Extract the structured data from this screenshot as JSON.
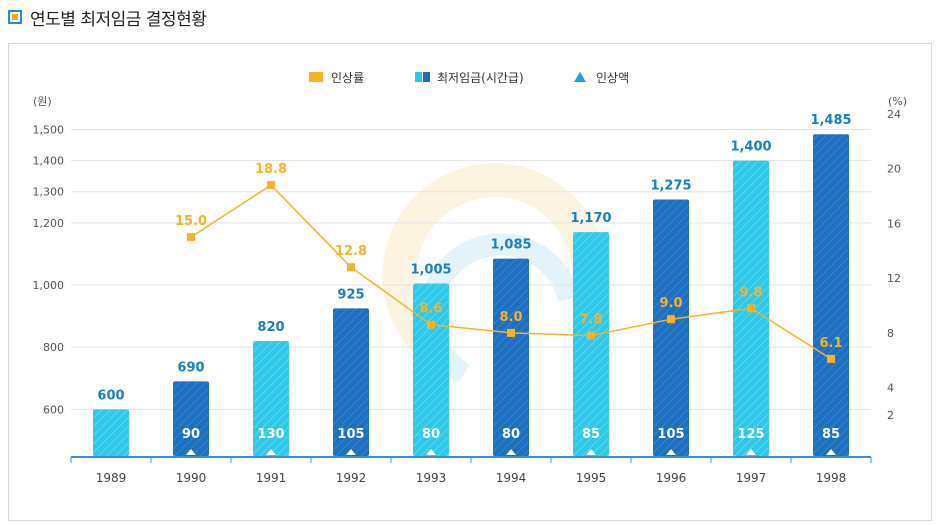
{
  "title": "연도별 최저임금 결정현황",
  "chart_data": {
    "type": "bar",
    "categories": [
      "1989",
      "1990",
      "1991",
      "1992",
      "1993",
      "1994",
      "1995",
      "1996",
      "1997",
      "1998"
    ],
    "legend": [
      {
        "name": "인상률",
        "color": "#f6b22a",
        "marker": "square"
      },
      {
        "name": "최저임금(시간급)",
        "color": "#1f6fbe",
        "marker": "square"
      },
      {
        "name": "인상액",
        "color": "#1ea0e0",
        "marker": "triangle"
      }
    ],
    "left_axis": {
      "unit": "(원)",
      "ylim": [
        450,
        1550
      ],
      "ticks": [
        600,
        800,
        "1,000",
        "1,200",
        "1,300",
        "1,400",
        "1,500"
      ]
    },
    "right_axis": {
      "unit": "(%)",
      "ylim": [
        -1,
        24
      ],
      "ticks": [
        2,
        4,
        8,
        12,
        16,
        20,
        24
      ]
    },
    "series": [
      {
        "name": "최저임금(시간급)",
        "kind": "bar",
        "axis": "left",
        "values": [
          600,
          690,
          820,
          925,
          1005,
          1085,
          1170,
          1275,
          1400,
          1485
        ],
        "labels": [
          "600",
          "690",
          "820",
          "925",
          "1,005",
          "1,085",
          "1,170",
          "1,275",
          "1,400",
          "1,485"
        ],
        "bar_colors": [
          "#2ec8ea",
          "#1f6fbe",
          "#2ec8ea",
          "#1f6fbe",
          "#2ec8ea",
          "#1f6fbe",
          "#2ec8ea",
          "#1f6fbe",
          "#2ec8ea",
          "#1f6fbe"
        ],
        "label_color": "#1a7fc2"
      },
      {
        "name": "인상액",
        "kind": "label",
        "axis": "none",
        "values": [
          null,
          90,
          130,
          105,
          80,
          80,
          85,
          105,
          125,
          85
        ],
        "labels": [
          "",
          "90",
          "130",
          "105",
          "80",
          "80",
          "85",
          "105",
          "125",
          "85"
        ],
        "label_color": "#ffffff"
      },
      {
        "name": "인상률",
        "kind": "line",
        "axis": "right",
        "values": [
          null,
          15.0,
          18.8,
          12.8,
          8.6,
          8.0,
          7.8,
          9.0,
          9.8,
          6.1
        ],
        "labels": [
          "",
          "15.0",
          "18.8",
          "12.8",
          "8.6",
          "8.0",
          "7.8",
          "9.0",
          "9.8",
          "6.1"
        ],
        "color": "#f6b22a"
      }
    ],
    "grid": true
  }
}
